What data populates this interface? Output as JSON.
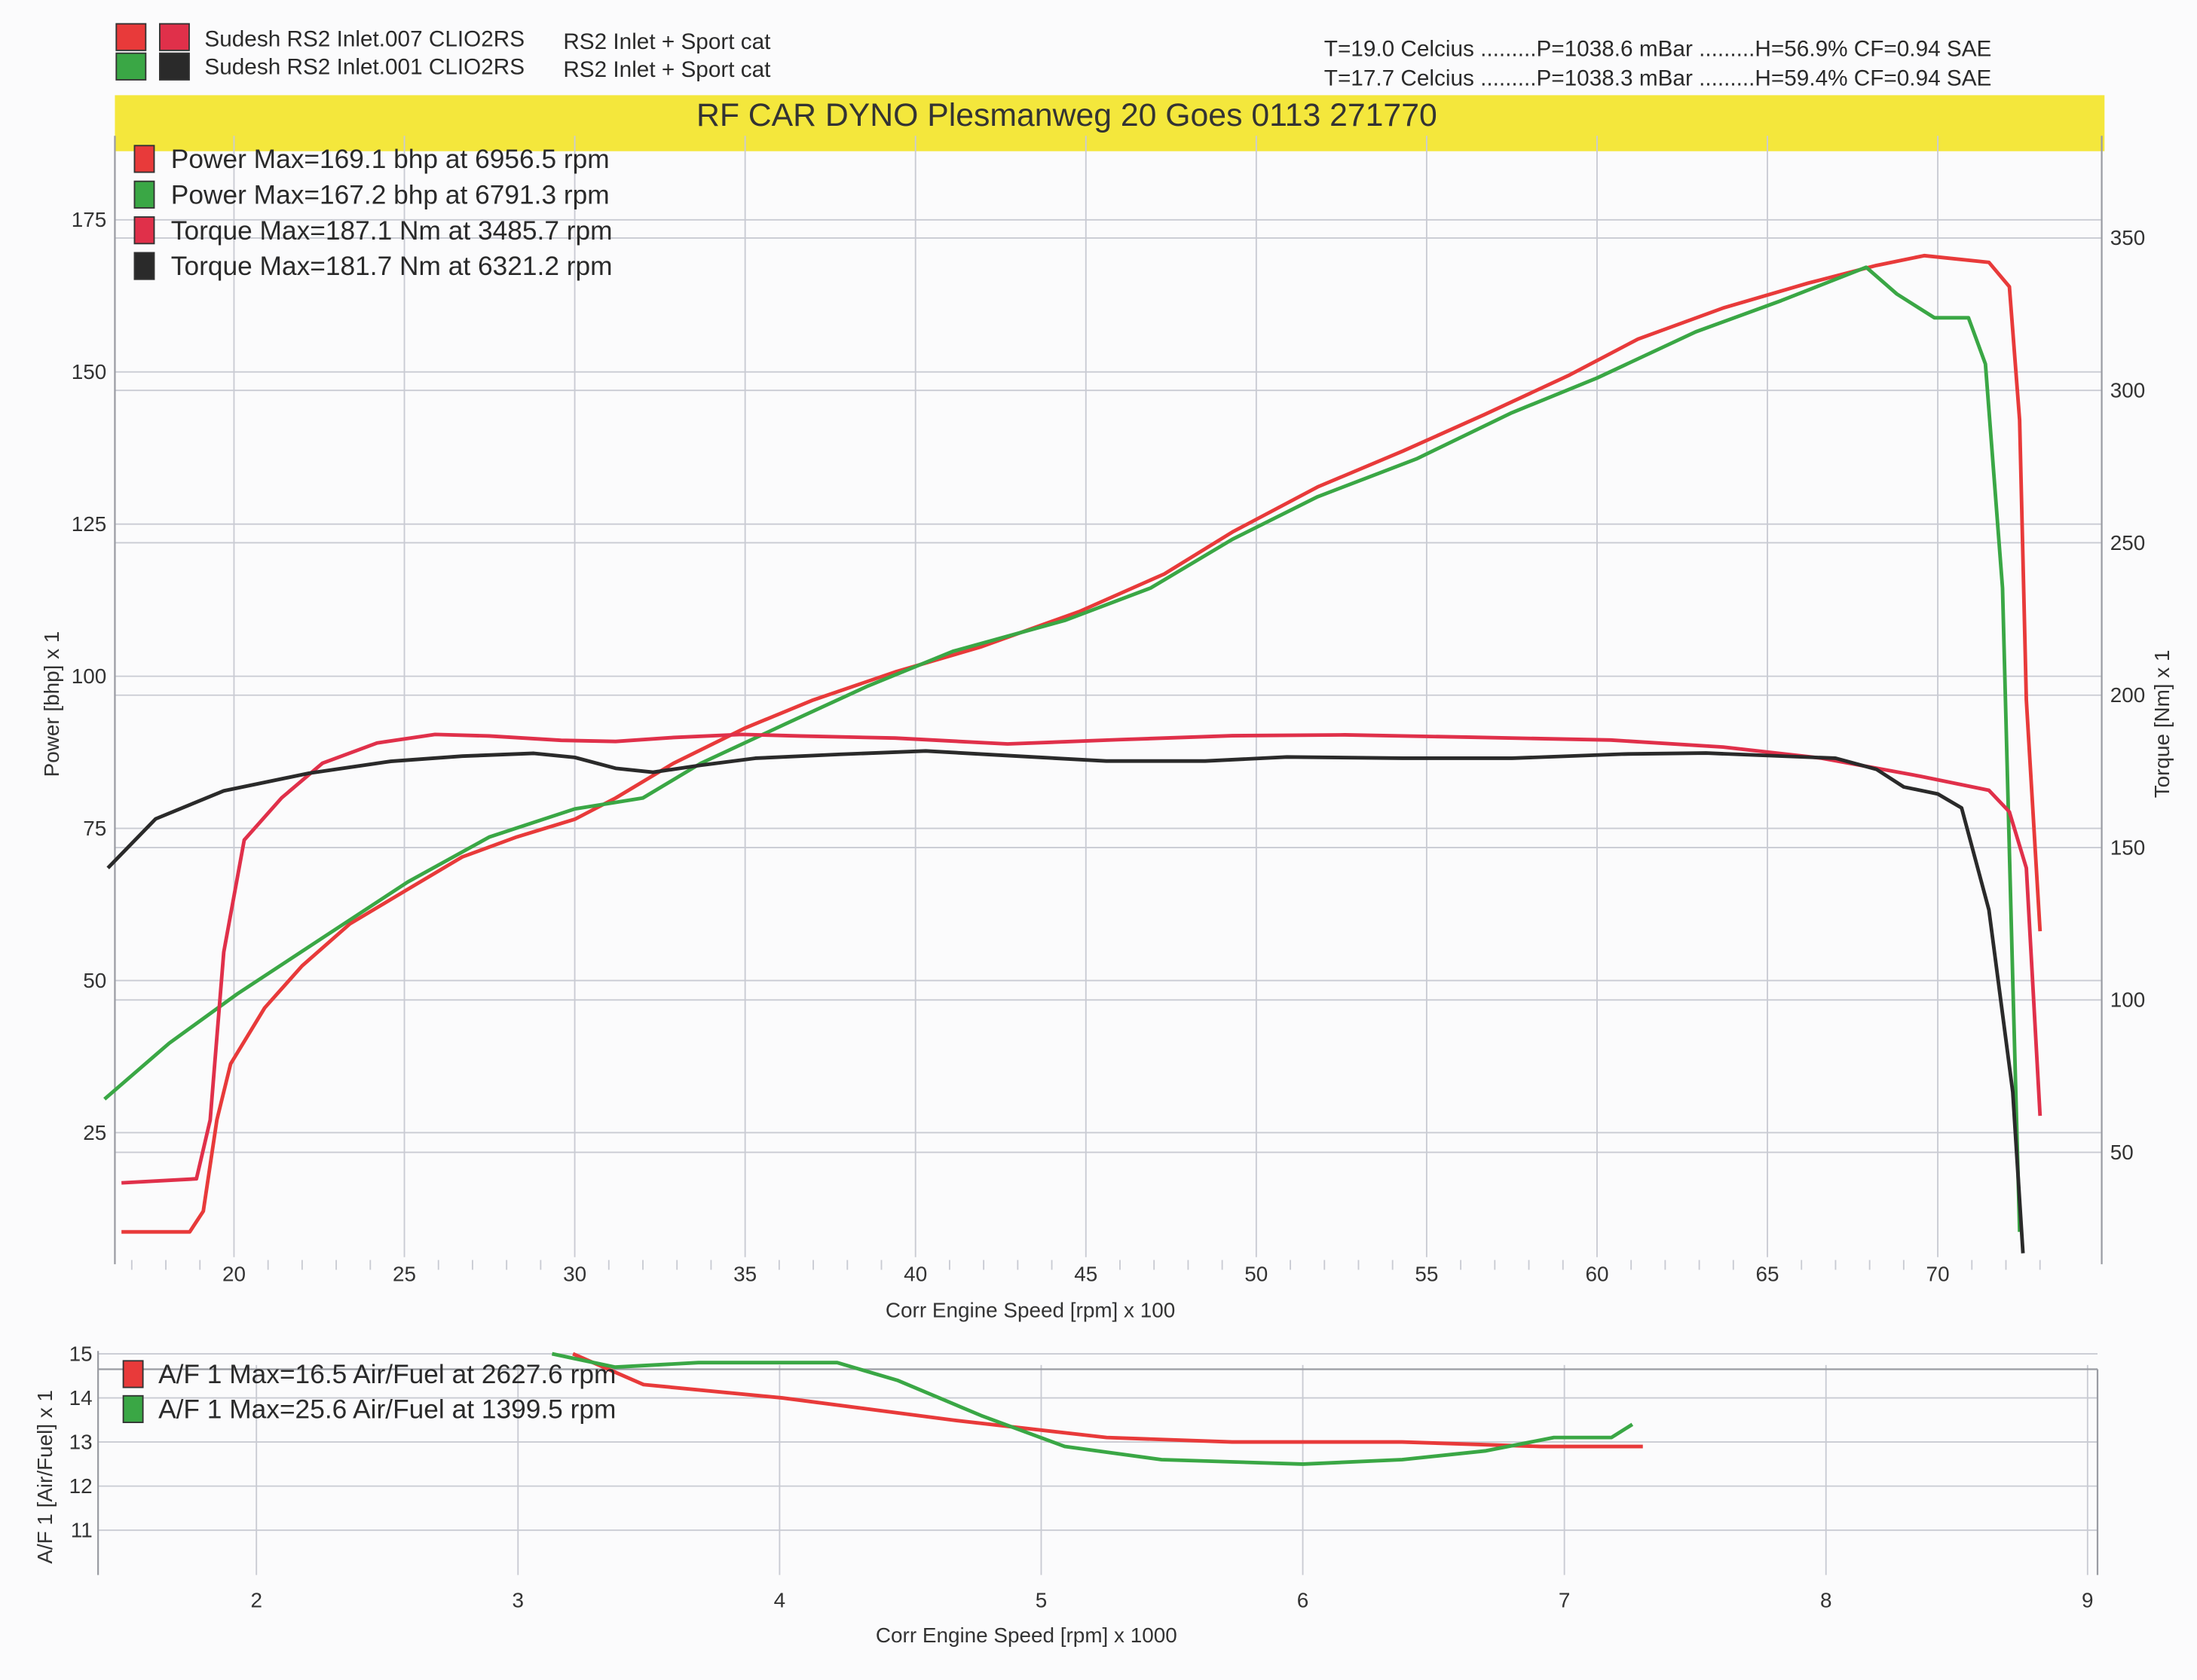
{
  "header": {
    "runs": [
      {
        "label": "Sudesh RS2 Inlet.007 CLIO2RS",
        "desc": "RS2 Inlet + Sport cat",
        "colors": [
          "#e83a3a",
          "#e0304a"
        ]
      },
      {
        "label": "Sudesh RS2 Inlet.001 CLIO2RS",
        "desc": "RS2 Inlet + Sport cat",
        "colors": [
          "#3aa745",
          "#2a2a2a"
        ]
      }
    ],
    "conditions": [
      "T=19.0 Celcius .........P=1038.6 mBar .........H=56.9% CF=0.94 SAE",
      "T=17.7 Celcius .........P=1038.3 mBar .........H=59.4% CF=0.94 SAE"
    ],
    "title": "RF CAR DYNO  Plesmanweg 20 Goes  0113 271770",
    "title_bg": "#f4e73c"
  },
  "chart_data": [
    {
      "type": "line",
      "title": "Power / Torque",
      "xlabel": "Corr Engine Speed [rpm] x 100",
      "ylabel": "Power [bhp] x 1",
      "y2label": "Torque [Nm] x 1",
      "xlim": [
        16,
        75
      ],
      "ylim": [
        0,
        185
      ],
      "y2lim": [
        0,
        370
      ],
      "xticks": [
        "20",
        "25",
        "30",
        "35",
        "40",
        "45",
        "50",
        "55",
        "60",
        "65",
        "70"
      ],
      "yticks": [
        "25",
        "50",
        "75",
        "100",
        "125",
        "150",
        "175"
      ],
      "y2ticks": [
        "50",
        "100",
        "150",
        "200",
        "250",
        "300",
        "350"
      ],
      "grid": true,
      "legend_position": "top-left",
      "legend": [
        {
          "text": "Power  Max=169.1 bhp at 6956.5 rpm",
          "color": "#e83a3a"
        },
        {
          "text": "Power  Max=167.2 bhp at 6791.3 rpm",
          "color": "#3aa745"
        },
        {
          "text": "Torque  Max=187.1 Nm at 3485.7 rpm",
          "color": "#e0304a"
        },
        {
          "text": "Torque  Max=181.7 Nm at 6321.2 rpm",
          "color": "#2a2a2a"
        }
      ],
      "series": [
        {
          "name": "Power 007",
          "axis": "left",
          "color": "#e83a3a",
          "x": [
            16.7,
            18.7,
            19.1,
            19.5,
            19.9,
            20.9,
            22.0,
            23.4,
            25.1,
            26.7,
            28.3,
            30.0,
            31.2,
            32.9,
            35.0,
            37.0,
            39.4,
            41.9,
            44.8,
            47.3,
            49.3,
            51.8,
            54.3,
            56.7,
            59.2,
            61.2,
            63.7,
            66.2,
            68.2,
            69.6,
            71.5,
            72.1,
            72.4,
            72.6,
            73.0
          ],
          "y": [
            8.7,
            8.7,
            12.1,
            27.1,
            36.3,
            45.5,
            52.4,
            59.3,
            65.0,
            70.3,
            73.6,
            76.5,
            80.0,
            85.7,
            91.5,
            96.1,
            100.7,
            104.8,
            110.6,
            116.8,
            123.7,
            131.1,
            137.0,
            143.0,
            149.5,
            155.4,
            160.5,
            164.6,
            167.5,
            169.1,
            168.0,
            164.0,
            142.1,
            96.1,
            58.1
          ]
        },
        {
          "name": "Power 001",
          "axis": "left",
          "color": "#3aa745",
          "x": [
            16.2,
            18.1,
            20.1,
            22.6,
            25.1,
            27.5,
            30.0,
            32.0,
            33.7,
            36.2,
            38.6,
            41.1,
            44.4,
            46.9,
            49.3,
            51.8,
            54.7,
            57.5,
            60.0,
            62.9,
            65.4,
            67.9,
            68.8,
            69.9,
            70.9,
            71.4,
            71.9,
            72.2,
            72.4
          ],
          "y": [
            30.5,
            39.7,
            47.8,
            57.0,
            66.2,
            73.6,
            78.2,
            80.0,
            85.7,
            92.2,
            98.4,
            104.1,
            109.2,
            114.5,
            122.5,
            129.5,
            135.7,
            143.3,
            149.0,
            156.6,
            161.7,
            167.2,
            162.8,
            158.9,
            158.9,
            151.3,
            114.5,
            50.1,
            8.7
          ]
        },
        {
          "name": "Torque 007",
          "axis": "right",
          "color": "#e0304a",
          "x": [
            16.7,
            18.9,
            19.3,
            19.7,
            20.3,
            21.4,
            22.6,
            24.2,
            25.9,
            27.5,
            29.6,
            31.2,
            32.9,
            34.9,
            36.6,
            39.4,
            42.7,
            46.0,
            49.3,
            52.6,
            56.3,
            60.4,
            63.7,
            66.6,
            69.5,
            71.5,
            72.1,
            72.6,
            73.0
          ],
          "y": [
            40,
            41.3,
            60.6,
            115.7,
            152.5,
            166.3,
            177.7,
            184.3,
            187.1,
            186.6,
            185.2,
            184.8,
            186.1,
            187.1,
            186.6,
            185.9,
            184.0,
            185.4,
            186.7,
            187.0,
            186.2,
            185.3,
            183.0,
            179.3,
            173.4,
            168.8,
            161.7,
            143.3,
            62.0
          ]
        },
        {
          "name": "Torque 001",
          "axis": "right",
          "color": "#2a2a2a",
          "x": [
            16.3,
            17.7,
            19.7,
            22.2,
            24.6,
            26.7,
            28.8,
            30.0,
            31.2,
            32.3,
            33.7,
            35.3,
            37.8,
            40.3,
            42.7,
            45.6,
            48.5,
            50.9,
            54.3,
            57.5,
            60.8,
            63.2,
            67.0,
            68.2,
            69.0,
            70.0,
            70.7,
            71.5,
            72.2,
            72.5
          ],
          "y": [
            143.3,
            159.4,
            168.6,
            174.4,
            178.3,
            180.0,
            180.9,
            179.6,
            176.0,
            174.7,
            177.0,
            179.3,
            180.6,
            181.7,
            180.2,
            178.4,
            178.4,
            179.7,
            179.3,
            179.3,
            180.7,
            181.0,
            179.3,
            175.7,
            169.9,
            167.6,
            163.0,
            129.5,
            69.8,
            16.9
          ]
        }
      ]
    },
    {
      "type": "line",
      "title": "Air/Fuel",
      "xlabel": "Corr Engine Speed [rpm] x 1000",
      "ylabel": "A/F 1 [Air/Fuel] x 1",
      "xlim": [
        1.5,
        9.05
      ],
      "ylim": [
        10.0,
        15.0
      ],
      "xticks": [
        "2",
        "3",
        "4",
        "5",
        "6",
        "7",
        "8",
        "9"
      ],
      "yticks": [
        "11",
        "12",
        "13",
        "14",
        "15"
      ],
      "grid": true,
      "legend_position": "top-left",
      "legend": [
        {
          "text": "A/F 1  Max=16.5 Air/Fuel at 2627.6 rpm",
          "color": "#e83a3a"
        },
        {
          "text": "A/F 1  Max=25.6 Air/Fuel at 1399.5 rpm",
          "color": "#3aa745"
        }
      ],
      "series": [
        {
          "name": "A/F 007",
          "color": "#e83a3a",
          "x": [
            3.21,
            3.48,
            4.01,
            4.66,
            5.25,
            5.73,
            6.38,
            6.91,
            7.3
          ],
          "y": [
            15.0,
            14.3,
            14.0,
            13.5,
            13.1,
            13.0,
            13.0,
            12.9,
            12.9
          ]
        },
        {
          "name": "A/F 001",
          "color": "#3aa745",
          "x": [
            3.13,
            3.37,
            3.69,
            4.22,
            4.45,
            4.77,
            5.09,
            5.46,
            6.0,
            6.38,
            6.7,
            6.96,
            7.18,
            7.26
          ],
          "y": [
            15.0,
            14.7,
            14.8,
            14.8,
            14.4,
            13.6,
            12.9,
            12.6,
            12.5,
            12.6,
            12.8,
            13.1,
            13.1,
            13.4
          ]
        }
      ]
    }
  ]
}
